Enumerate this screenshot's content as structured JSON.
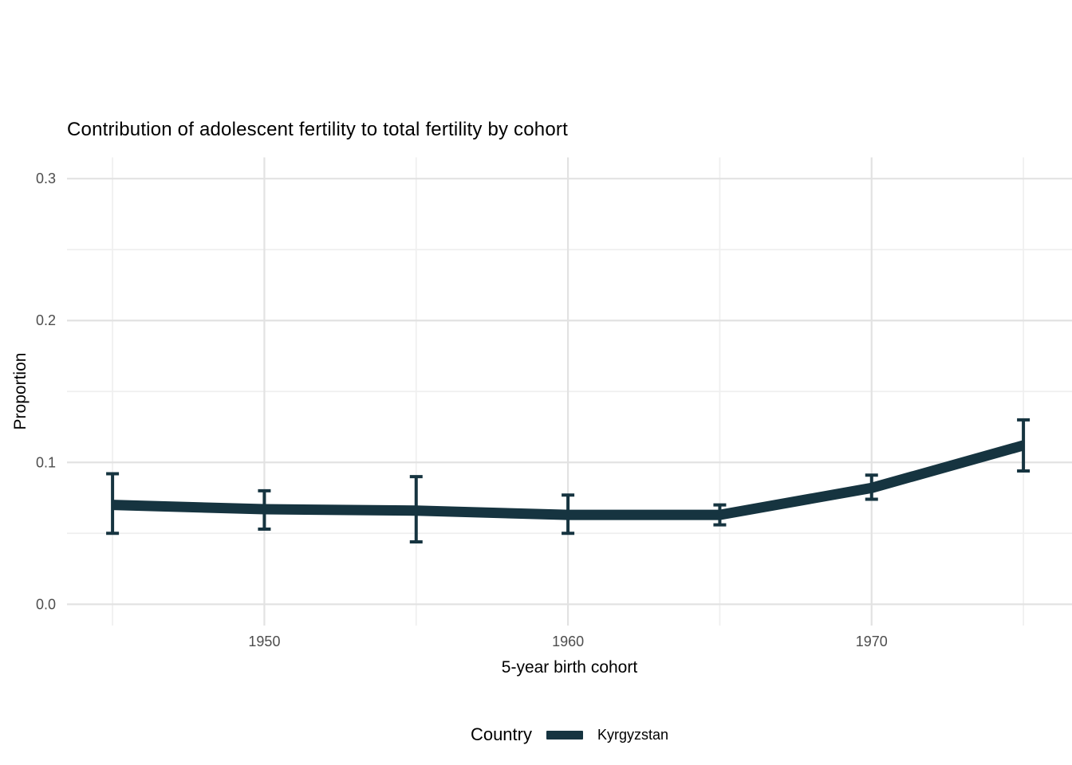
{
  "chart_data": {
    "type": "line",
    "title": "Contribution of adolescent fertility to total fertility by cohort",
    "xlabel": "5-year birth cohort",
    "ylabel": "Proportion",
    "legend_title": "Country",
    "legend_position": "bottom",
    "grid": true,
    "series": [
      {
        "name": "Kyrgyzstan",
        "color": "#163440",
        "x": [
          1945,
          1950,
          1955,
          1960,
          1965,
          1970,
          1975
        ],
        "y": [
          0.07,
          0.067,
          0.066,
          0.063,
          0.063,
          0.082,
          0.112
        ],
        "y_lower": [
          0.05,
          0.053,
          0.044,
          0.05,
          0.056,
          0.074,
          0.094
        ],
        "y_upper": [
          0.092,
          0.08,
          0.09,
          0.077,
          0.07,
          0.091,
          0.13
        ]
      }
    ],
    "x_ticks": [
      1950,
      1960,
      1970
    ],
    "x_tick_labels": [
      "1950",
      "1960",
      "1970"
    ],
    "x_minor_ticks": [
      1945,
      1955,
      1965,
      1975
    ],
    "y_ticks": [
      0.0,
      0.1,
      0.2,
      0.3
    ],
    "y_tick_labels": [
      "0.0",
      "0.1",
      "0.2",
      "0.3"
    ],
    "y_minor_ticks": [
      0.05,
      0.15,
      0.25
    ],
    "xlim": [
      1943.5,
      1976.6
    ],
    "ylim": [
      -0.015,
      0.315
    ]
  },
  "colors": {
    "background": "#ffffff",
    "grid_major": "#e2e2e2",
    "grid_minor": "#efefef",
    "tick_label": "#4d4d4d",
    "text": "#000000",
    "series": "#163440"
  }
}
